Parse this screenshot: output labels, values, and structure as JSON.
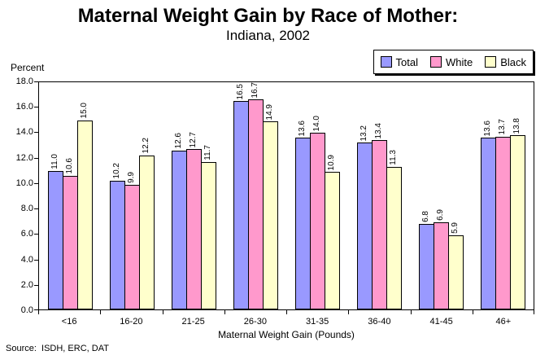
{
  "title": "Maternal Weight Gain by Race of Mother:",
  "subtitle": "Indiana, 2002",
  "y_axis_label": "Percent",
  "x_axis_label": "Maternal Weight Gain (Pounds)",
  "source": "Source:  ISDH, ERC, DAT",
  "legend": {
    "position": "top-right",
    "items": [
      "Total",
      "White",
      "Black"
    ]
  },
  "colors": {
    "total_bar": "#9999FF",
    "white_bar": "#FF99CC",
    "black_bar": "#FFFFCC",
    "axis": "#000000",
    "background": "#FFFFFF"
  },
  "chart_data": {
    "type": "bar",
    "title": "Maternal Weight Gain by Race of Mother: Indiana, 2002",
    "xlabel": "Maternal Weight Gain (Pounds)",
    "ylabel": "Percent",
    "ylim": [
      0,
      18
    ],
    "ytick_step": 2,
    "grid": false,
    "legend_position": "top-right",
    "data_labels": true,
    "data_label_rotation": 90,
    "categories": [
      "<16",
      "16-20",
      "21-25",
      "26-30",
      "31-35",
      "36-40",
      "41-45",
      "46+"
    ],
    "series": [
      {
        "name": "Total",
        "color": "#9999FF",
        "values": [
          11.0,
          10.2,
          12.6,
          16.5,
          13.6,
          13.2,
          6.8,
          13.6
        ]
      },
      {
        "name": "White",
        "color": "#FF99CC",
        "values": [
          10.6,
          9.9,
          12.7,
          16.7,
          14.0,
          13.4,
          6.9,
          13.7
        ]
      },
      {
        "name": "Black",
        "color": "#FFFFCC",
        "values": [
          15.0,
          12.2,
          11.7,
          14.9,
          10.9,
          11.3,
          5.9,
          13.8
        ]
      }
    ]
  }
}
